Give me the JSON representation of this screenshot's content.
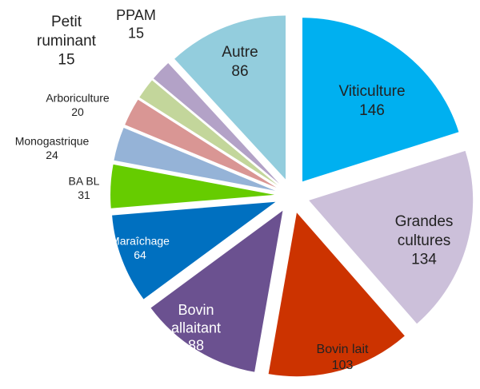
{
  "chart_data": {
    "type": "pie",
    "categories": [
      "Viticulture",
      "Grandes cultures",
      "Bovin lait",
      "Bovin allaitant",
      "Maraîchage",
      "BA BL",
      "Monogastrique",
      "Arboriculture",
      "Petit ruminant",
      "PPAM",
      "Autre"
    ],
    "values": [
      146,
      134,
      103,
      88,
      64,
      31,
      24,
      20,
      15,
      15,
      86
    ],
    "colors": [
      "#00b0f0",
      "#ccc0da",
      "#cc3300",
      "#6b5190",
      "#0070c0",
      "#66cc00",
      "#95b3d7",
      "#d99694",
      "#c3d69b",
      "#b3a2c7",
      "#93cddd"
    ]
  }
}
